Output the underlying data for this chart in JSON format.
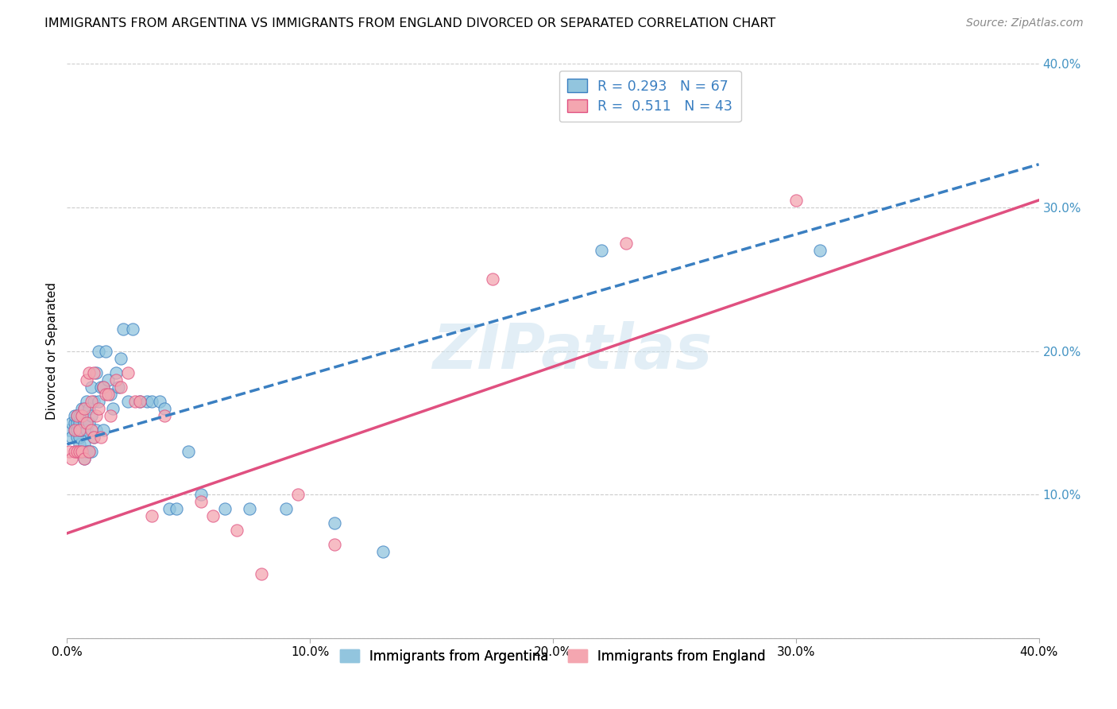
{
  "title": "IMMIGRANTS FROM ARGENTINA VS IMMIGRANTS FROM ENGLAND DIVORCED OR SEPARATED CORRELATION CHART",
  "source": "Source: ZipAtlas.com",
  "ylabel": "Divorced or Separated",
  "xlim": [
    0.0,
    0.4
  ],
  "ylim": [
    0.0,
    0.4
  ],
  "argentina_color": "#92c5de",
  "england_color": "#f4a6b0",
  "argentina_R": 0.293,
  "argentina_N": 67,
  "england_R": 0.511,
  "england_N": 43,
  "argentina_line_color": "#3a7fc1",
  "england_line_color": "#e05080",
  "watermark": "ZIPatlas",
  "legend_label_1": "Immigrants from Argentina",
  "legend_label_2": "Immigrants from England",
  "arg_x": [
    0.001,
    0.002,
    0.002,
    0.003,
    0.003,
    0.003,
    0.004,
    0.004,
    0.004,
    0.004,
    0.005,
    0.005,
    0.005,
    0.005,
    0.005,
    0.006,
    0.006,
    0.006,
    0.006,
    0.007,
    0.007,
    0.007,
    0.007,
    0.008,
    0.008,
    0.008,
    0.009,
    0.009,
    0.009,
    0.01,
    0.01,
    0.01,
    0.011,
    0.011,
    0.012,
    0.012,
    0.013,
    0.013,
    0.014,
    0.015,
    0.015,
    0.016,
    0.017,
    0.018,
    0.019,
    0.02,
    0.021,
    0.022,
    0.023,
    0.025,
    0.027,
    0.03,
    0.033,
    0.035,
    0.038,
    0.04,
    0.042,
    0.045,
    0.05,
    0.055,
    0.065,
    0.075,
    0.09,
    0.11,
    0.13,
    0.22,
    0.31
  ],
  "arg_y": [
    0.145,
    0.14,
    0.15,
    0.145,
    0.15,
    0.155,
    0.14,
    0.145,
    0.15,
    0.155,
    0.135,
    0.14,
    0.145,
    0.15,
    0.155,
    0.13,
    0.145,
    0.155,
    0.16,
    0.125,
    0.135,
    0.15,
    0.16,
    0.13,
    0.145,
    0.165,
    0.13,
    0.15,
    0.16,
    0.13,
    0.155,
    0.175,
    0.14,
    0.165,
    0.145,
    0.185,
    0.165,
    0.2,
    0.175,
    0.145,
    0.175,
    0.2,
    0.18,
    0.17,
    0.16,
    0.185,
    0.175,
    0.195,
    0.215,
    0.165,
    0.215,
    0.165,
    0.165,
    0.165,
    0.165,
    0.16,
    0.09,
    0.09,
    0.13,
    0.1,
    0.09,
    0.09,
    0.09,
    0.08,
    0.06,
    0.27,
    0.27
  ],
  "eng_x": [
    0.001,
    0.002,
    0.003,
    0.003,
    0.004,
    0.004,
    0.005,
    0.005,
    0.006,
    0.006,
    0.007,
    0.007,
    0.008,
    0.008,
    0.009,
    0.009,
    0.01,
    0.01,
    0.011,
    0.011,
    0.012,
    0.013,
    0.014,
    0.015,
    0.016,
    0.017,
    0.018,
    0.02,
    0.022,
    0.025,
    0.028,
    0.03,
    0.035,
    0.04,
    0.055,
    0.06,
    0.07,
    0.08,
    0.095,
    0.11,
    0.175,
    0.23,
    0.3
  ],
  "eng_y": [
    0.13,
    0.125,
    0.13,
    0.145,
    0.13,
    0.155,
    0.13,
    0.145,
    0.13,
    0.155,
    0.125,
    0.16,
    0.15,
    0.18,
    0.13,
    0.185,
    0.145,
    0.165,
    0.14,
    0.185,
    0.155,
    0.16,
    0.14,
    0.175,
    0.17,
    0.17,
    0.155,
    0.18,
    0.175,
    0.185,
    0.165,
    0.165,
    0.085,
    0.155,
    0.095,
    0.085,
    0.075,
    0.045,
    0.1,
    0.065,
    0.25,
    0.275,
    0.305
  ],
  "arg_line_x0": 0.0,
  "arg_line_y0": 0.135,
  "arg_line_x1": 0.4,
  "arg_line_y1": 0.33,
  "eng_line_x0": 0.0,
  "eng_line_y0": 0.073,
  "eng_line_x1": 0.4,
  "eng_line_y1": 0.305
}
